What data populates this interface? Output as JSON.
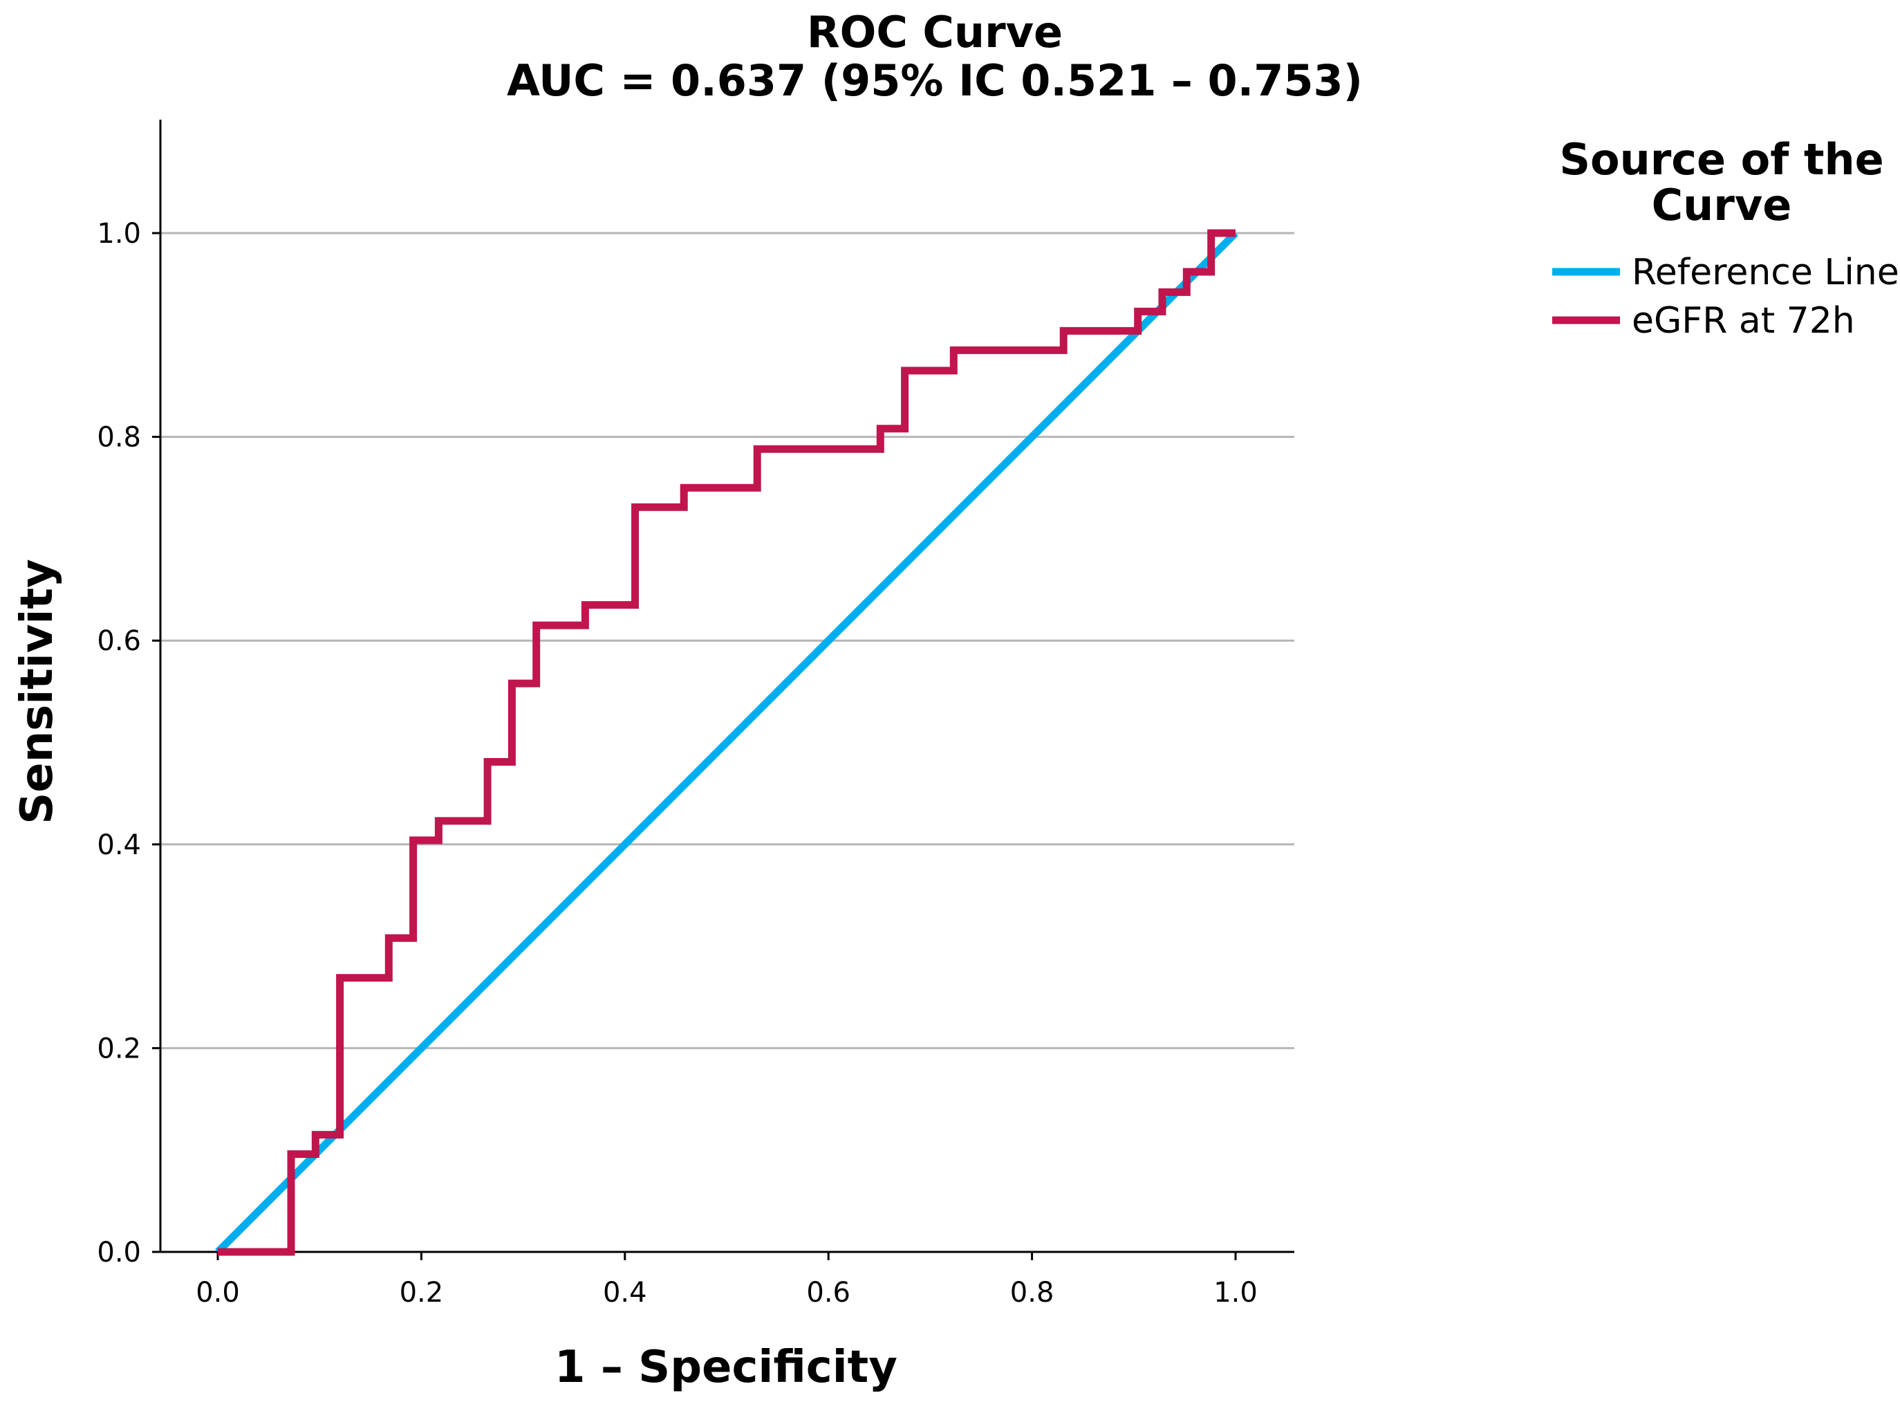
{
  "chart_data": {
    "type": "line",
    "title": "ROC Curve",
    "subtitle": "AUC = 0.637 (95% IC 0.521 – 0.753)",
    "xlabel": "1 – Specificity",
    "ylabel": "Sensitivity",
    "xlim": [
      0.0,
      1.0
    ],
    "ylim": [
      0.0,
      1.0
    ],
    "x_ticks": [
      "0.0",
      "0.2",
      "0.4",
      "0.6",
      "0.8",
      "1.0"
    ],
    "y_ticks": [
      "0.0",
      "0.2",
      "0.4",
      "0.6",
      "0.8",
      "1.0"
    ],
    "grid": "horizontal",
    "legend": {
      "title_line1": "Source of the",
      "title_line2": "Curve",
      "placement": "right"
    },
    "series": [
      {
        "name": "Reference Line",
        "color": "#00aeef",
        "x": [
          0.0,
          1.0
        ],
        "y": [
          0.0,
          1.0
        ]
      },
      {
        "name": "eGFR at 72h",
        "color": "#c0154d",
        "x": [
          0.0,
          0.072,
          0.072,
          0.096,
          0.096,
          0.12,
          0.12,
          0.168,
          0.168,
          0.192,
          0.192,
          0.217,
          0.217,
          0.265,
          0.265,
          0.289,
          0.289,
          0.313,
          0.313,
          0.361,
          0.361,
          0.41,
          0.41,
          0.458,
          0.458,
          0.53,
          0.53,
          0.651,
          0.651,
          0.675,
          0.675,
          0.723,
          0.723,
          0.831,
          0.831,
          0.904,
          0.904,
          0.928,
          0.928,
          0.952,
          0.952,
          0.976,
          0.976,
          1.0
        ],
        "y": [
          0.0,
          0.0,
          0.096,
          0.096,
          0.115,
          0.115,
          0.269,
          0.269,
          0.308,
          0.308,
          0.404,
          0.404,
          0.423,
          0.423,
          0.481,
          0.481,
          0.558,
          0.558,
          0.615,
          0.615,
          0.635,
          0.635,
          0.731,
          0.731,
          0.75,
          0.75,
          0.788,
          0.788,
          0.808,
          0.808,
          0.865,
          0.865,
          0.885,
          0.885,
          0.904,
          0.904,
          0.923,
          0.923,
          0.942,
          0.942,
          0.962,
          0.962,
          1.0,
          1.0
        ]
      }
    ]
  }
}
